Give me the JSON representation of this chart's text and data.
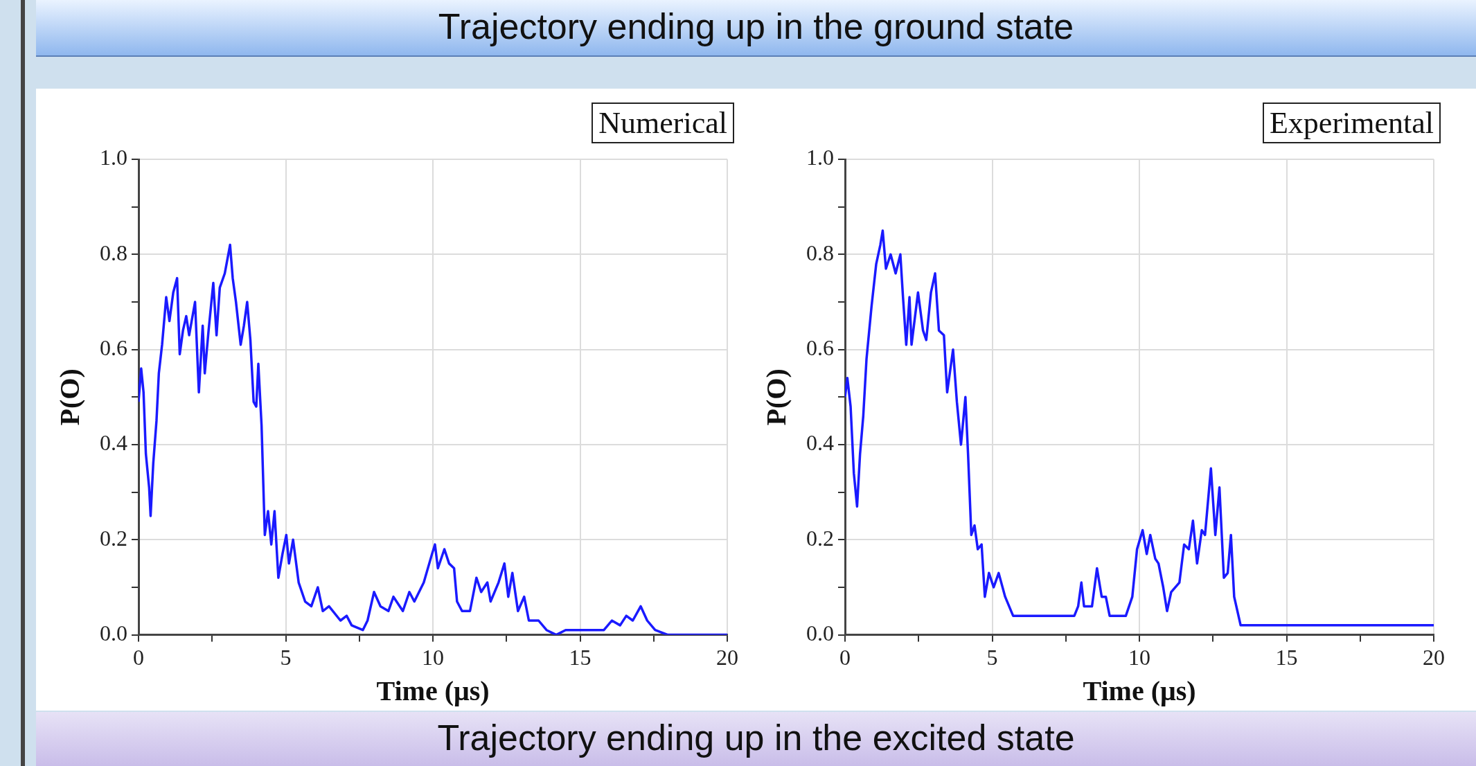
{
  "chart_data": [
    {
      "type": "line",
      "title": "Numerical",
      "xlabel": "Time (μs)",
      "ylabel": "P(O)",
      "annotations": [
        "Trajectory  ending up in the ground state",
        "Trajectory  ending up in the excited state"
      ],
      "xlim": [
        0,
        20
      ],
      "xticks": [
        0,
        {
          "value": 2.5,
          "label": null
        },
        5,
        {
          "value": 7.5,
          "label": null
        },
        10,
        {
          "value": 12.5,
          "label": null
        },
        15,
        {
          "value": 17.5,
          "label": null
        },
        20
      ],
      "ylim": [
        0,
        1
      ],
      "yticks": [
        {
          "value": 0,
          "label": "0.0"
        },
        {
          "value": 0.1,
          "label": null
        },
        {
          "value": 0.2,
          "label": "0.2"
        },
        {
          "value": 0.3,
          "label": null
        },
        {
          "value": 0.4,
          "label": "0.4"
        },
        {
          "value": 0.5,
          "label": null
        },
        {
          "value": 0.6,
          "label": "0.6"
        },
        {
          "value": 0.7,
          "label": null
        },
        {
          "value": 0.8,
          "label": "0.8"
        },
        {
          "value": 0.9,
          "label": null
        },
        {
          "value": 1,
          "label": "1.0"
        }
      ],
      "grid": true,
      "legend": false,
      "marker": "none",
      "line_style": "solid",
      "series": [
        {
          "color": "#1a1aff",
          "x": [
            0,
            0.09,
            0.17,
            0.25,
            0.36,
            0.41,
            0.5,
            0.61,
            0.69,
            0.8,
            0.94,
            1.05,
            1.18,
            1.31,
            1.4,
            1.51,
            1.62,
            1.72,
            1.92,
            2.05,
            2.18,
            2.25,
            2.38,
            2.54,
            2.65,
            2.76,
            2.93,
            3.11,
            3.2,
            3.31,
            3.47,
            3.58,
            3.69,
            3.8,
            3.91,
            4,
            4.07,
            4.18,
            4.29,
            4.4,
            4.51,
            4.62,
            4.75,
            4.89,
            5.02,
            5.11,
            5.25,
            5.44,
            5.66,
            5.87,
            6.09,
            6.26,
            6.47,
            6.86,
            7.07,
            7.24,
            7.62,
            7.78,
            8,
            8.22,
            8.49,
            8.66,
            8.98,
            9.2,
            9.37,
            9.69,
            9.97,
            10.07,
            10.17,
            10.39,
            10.55,
            10.72,
            10.82,
            10.99,
            11.26,
            11.48,
            11.64,
            11.85,
            11.96,
            12.23,
            12.43,
            12.56,
            12.7,
            12.89,
            13.1,
            13.26,
            13.59,
            13.86,
            14.19,
            14.51,
            14.95,
            15.38,
            15.81,
            16.08,
            16.36,
            16.57,
            16.79,
            17.06,
            17.28,
            17.55,
            17.98,
            20
          ],
          "values": [
            0.49,
            0.56,
            0.51,
            0.38,
            0.31,
            0.25,
            0.36,
            0.45,
            0.55,
            0.61,
            0.71,
            0.66,
            0.72,
            0.75,
            0.59,
            0.64,
            0.67,
            0.63,
            0.7,
            0.51,
            0.65,
            0.55,
            0.64,
            0.74,
            0.63,
            0.73,
            0.76,
            0.82,
            0.75,
            0.7,
            0.61,
            0.65,
            0.7,
            0.62,
            0.49,
            0.48,
            0.57,
            0.44,
            0.21,
            0.26,
            0.19,
            0.26,
            0.12,
            0.17,
            0.21,
            0.15,
            0.2,
            0.11,
            0.07,
            0.06,
            0.1,
            0.05,
            0.06,
            0.03,
            0.04,
            0.02,
            0.01,
            0.03,
            0.09,
            0.06,
            0.05,
            0.08,
            0.05,
            0.09,
            0.07,
            0.11,
            0.17,
            0.19,
            0.14,
            0.18,
            0.15,
            0.14,
            0.07,
            0.05,
            0.05,
            0.12,
            0.09,
            0.11,
            0.07,
            0.11,
            0.15,
            0.08,
            0.13,
            0.05,
            0.08,
            0.03,
            0.03,
            0.01,
            0,
            0.01,
            0.01,
            0.01,
            0.01,
            0.03,
            0.02,
            0.04,
            0.03,
            0.06,
            0.03,
            0.01,
            0,
            0
          ]
        }
      ]
    },
    {
      "type": "line",
      "title": "Experimental",
      "xlabel": "Time (μs)",
      "ylabel": "P(O)",
      "xlim": [
        0,
        20
      ],
      "xticks": [
        0,
        {
          "value": 2.5,
          "label": null
        },
        5,
        {
          "value": 7.5,
          "label": null
        },
        10,
        {
          "value": 12.5,
          "label": null
        },
        15,
        {
          "value": 17.5,
          "label": null
        },
        20
      ],
      "ylim": [
        0,
        1
      ],
      "yticks": [
        {
          "value": 0,
          "label": "0.0"
        },
        {
          "value": 0.1,
          "label": null
        },
        {
          "value": 0.2,
          "label": "0.2"
        },
        {
          "value": 0.3,
          "label": null
        },
        {
          "value": 0.4,
          "label": "0.4"
        },
        {
          "value": 0.5,
          "label": null
        },
        {
          "value": 0.6,
          "label": "0.6"
        },
        {
          "value": 0.7,
          "label": null
        },
        {
          "value": 0.8,
          "label": "0.8"
        },
        {
          "value": 0.9,
          "label": null
        },
        {
          "value": 1,
          "label": "1.0"
        }
      ],
      "grid": true,
      "legend": false,
      "marker": "none",
      "line_style": "solid",
      "series": [
        {
          "color": "#1a1aff",
          "x": [
            0,
            0.08,
            0.19,
            0.3,
            0.41,
            0.51,
            0.62,
            0.73,
            0.9,
            1.06,
            1.2,
            1.28,
            1.39,
            1.55,
            1.72,
            1.88,
            1.97,
            2.08,
            2.19,
            2.26,
            2.48,
            2.65,
            2.76,
            2.92,
            3.06,
            3.19,
            3.36,
            3.47,
            3.67,
            3.8,
            3.94,
            4.09,
            4.18,
            4.29,
            4.4,
            4.51,
            4.64,
            4.75,
            4.89,
            5.05,
            5.22,
            5.44,
            5.71,
            6.15,
            6.7,
            7.24,
            7.79,
            7.92,
            8.03,
            8.12,
            8.39,
            8.56,
            8.72,
            8.86,
            8.99,
            9.54,
            9.76,
            9.92,
            10.11,
            10.25,
            10.37,
            10.54,
            10.65,
            10.81,
            10.94,
            11.08,
            11.36,
            11.52,
            11.68,
            11.82,
            11.96,
            12.12,
            12.23,
            12.43,
            12.58,
            12.72,
            12.87,
            13,
            13.11,
            13.22,
            13.44,
            14.42,
            15.51,
            17.16,
            18.8,
            20
          ],
          "values": [
            0.5,
            0.54,
            0.48,
            0.34,
            0.27,
            0.38,
            0.46,
            0.58,
            0.69,
            0.78,
            0.82,
            0.85,
            0.77,
            0.8,
            0.76,
            0.8,
            0.71,
            0.61,
            0.71,
            0.61,
            0.72,
            0.64,
            0.62,
            0.72,
            0.76,
            0.64,
            0.63,
            0.51,
            0.6,
            0.49,
            0.4,
            0.5,
            0.38,
            0.21,
            0.23,
            0.18,
            0.19,
            0.08,
            0.13,
            0.1,
            0.13,
            0.08,
            0.04,
            0.04,
            0.04,
            0.04,
            0.04,
            0.06,
            0.11,
            0.06,
            0.06,
            0.14,
            0.08,
            0.08,
            0.04,
            0.04,
            0.08,
            0.18,
            0.22,
            0.17,
            0.21,
            0.16,
            0.15,
            0.1,
            0.05,
            0.09,
            0.11,
            0.19,
            0.18,
            0.24,
            0.15,
            0.22,
            0.21,
            0.35,
            0.21,
            0.31,
            0.12,
            0.13,
            0.21,
            0.08,
            0.02,
            0.02,
            0.02,
            0.02,
            0.02,
            0.02
          ]
        }
      ]
    }
  ]
}
